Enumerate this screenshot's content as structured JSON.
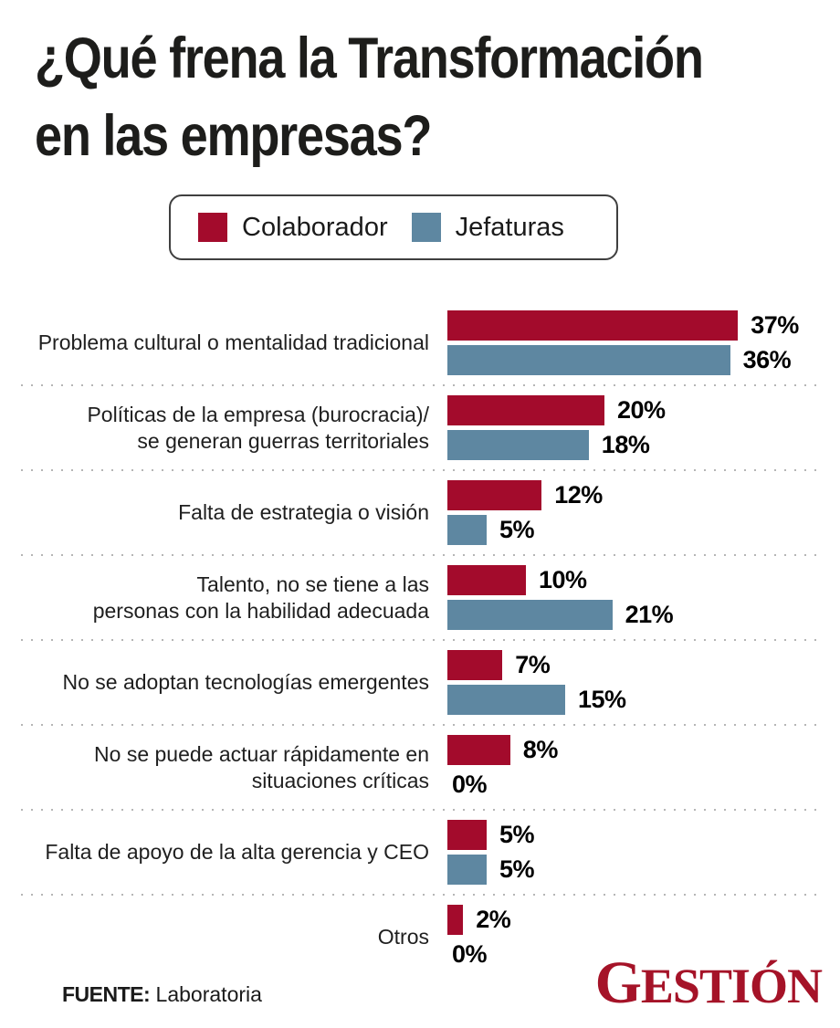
{
  "title": {
    "text": "¿Qué frena la Transformación\nen las empresas?"
  },
  "legend": {
    "items": [
      {
        "label": "Colaborador",
        "color": "#a30b2c"
      },
      {
        "label": "Jefaturas",
        "color": "#5e87a1"
      }
    ]
  },
  "chart_data": {
    "type": "bar",
    "orientation": "horizontal",
    "unit": "%",
    "xlim": [
      0,
      40
    ],
    "categories": [
      [
        "Problema cultural o mentalidad tradicional"
      ],
      [
        "Políticas de la empresa (burocracia)/",
        "se generan guerras territoriales"
      ],
      [
        "Falta de estrategia o visión"
      ],
      [
        "Talento, no se tiene a las",
        "personas con la habilidad adecuada"
      ],
      [
        "No se adoptan tecnologías emergentes"
      ],
      [
        "No se puede actuar rápidamente en",
        "situaciones críticas"
      ],
      [
        "Falta de apoyo de la alta gerencia y CEO"
      ],
      [
        "Otros"
      ]
    ],
    "series": [
      {
        "name": "Colaborador",
        "color": "#a30b2c",
        "values": [
          37,
          20,
          12,
          10,
          7,
          8,
          5,
          2
        ]
      },
      {
        "name": "Jefaturas",
        "color": "#5e87a1",
        "values": [
          36,
          18,
          5,
          21,
          15,
          0,
          5,
          0
        ]
      }
    ]
  },
  "footer": {
    "source_label": "FUENTE:",
    "source_value": " Laboratoria",
    "brand": "GESTIÓN"
  }
}
